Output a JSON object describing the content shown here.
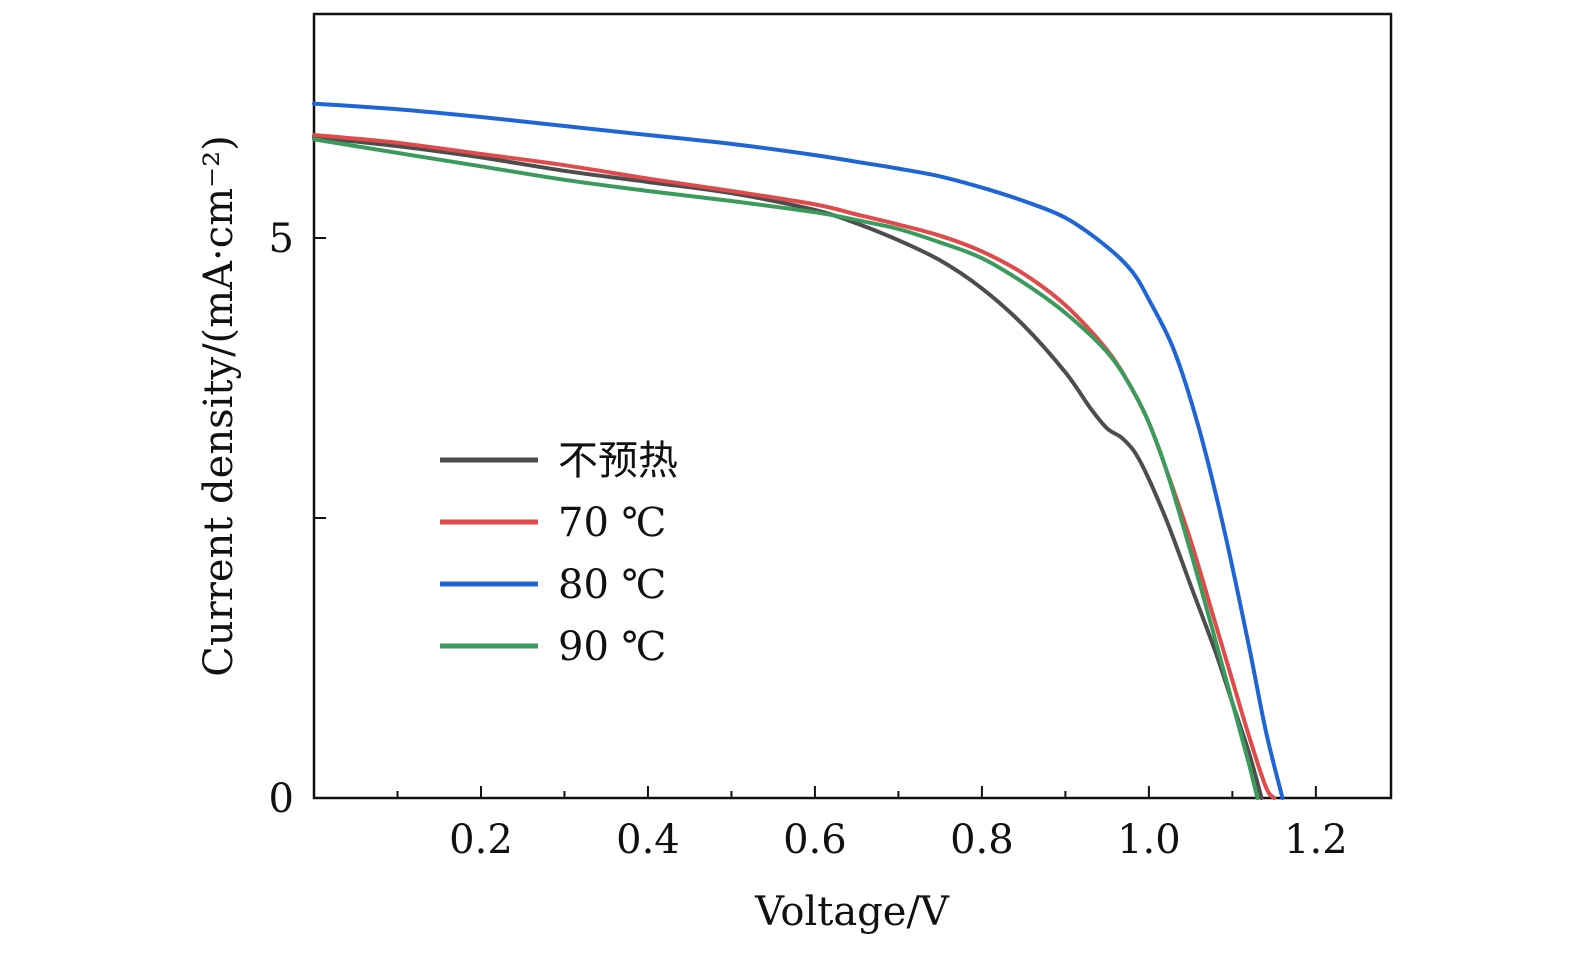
{
  "chart_data": {
    "type": "line",
    "xlabel": "Voltage/V",
    "ylabel": "Current density/(mA·cm⁻²)",
    "xlim": [
      0,
      1.29
    ],
    "ylim": [
      0,
      7.0
    ],
    "x_ticks": [
      {
        "value": 0.2,
        "label": "0.2"
      },
      {
        "value": 0.4,
        "label": "0.4"
      },
      {
        "value": 0.6,
        "label": "0.6"
      },
      {
        "value": 0.8,
        "label": "0.8"
      },
      {
        "value": 1.0,
        "label": "1.0"
      },
      {
        "value": 1.2,
        "label": "1.2"
      }
    ],
    "x_minor_ticks": [
      0.1,
      0.3,
      0.5,
      0.7,
      0.9,
      1.1
    ],
    "y_ticks": [
      {
        "value": 0,
        "label": "0"
      },
      {
        "value": 2.5,
        "label": ""
      },
      {
        "value": 5,
        "label": "5"
      }
    ],
    "grid": false,
    "legend_position": "center-left",
    "series": [
      {
        "name": "不预热",
        "color": "#4d4d4d",
        "points": [
          [
            0.0,
            5.9
          ],
          [
            0.1,
            5.82
          ],
          [
            0.2,
            5.72
          ],
          [
            0.3,
            5.6
          ],
          [
            0.4,
            5.5
          ],
          [
            0.5,
            5.4
          ],
          [
            0.6,
            5.25
          ],
          [
            0.65,
            5.13
          ],
          [
            0.7,
            4.98
          ],
          [
            0.75,
            4.8
          ],
          [
            0.8,
            4.55
          ],
          [
            0.85,
            4.22
          ],
          [
            0.9,
            3.8
          ],
          [
            0.93,
            3.48
          ],
          [
            0.95,
            3.3
          ],
          [
            0.97,
            3.2
          ],
          [
            0.99,
            3.0
          ],
          [
            1.02,
            2.5
          ],
          [
            1.05,
            1.9
          ],
          [
            1.08,
            1.3
          ],
          [
            1.1,
            0.85
          ],
          [
            1.12,
            0.4
          ],
          [
            1.135,
            0.0
          ]
        ]
      },
      {
        "name": "70 ℃",
        "color": "#e04a4a",
        "points": [
          [
            0.0,
            5.92
          ],
          [
            0.1,
            5.85
          ],
          [
            0.2,
            5.75
          ],
          [
            0.3,
            5.65
          ],
          [
            0.4,
            5.53
          ],
          [
            0.5,
            5.42
          ],
          [
            0.6,
            5.3
          ],
          [
            0.65,
            5.21
          ],
          [
            0.7,
            5.12
          ],
          [
            0.75,
            5.02
          ],
          [
            0.8,
            4.88
          ],
          [
            0.85,
            4.68
          ],
          [
            0.9,
            4.4
          ],
          [
            0.95,
            4.0
          ],
          [
            0.98,
            3.65
          ],
          [
            1.0,
            3.35
          ],
          [
            1.02,
            2.95
          ],
          [
            1.05,
            2.3
          ],
          [
            1.08,
            1.55
          ],
          [
            1.1,
            1.05
          ],
          [
            1.12,
            0.55
          ],
          [
            1.14,
            0.1
          ],
          [
            1.15,
            0.0
          ]
        ]
      },
      {
        "name": "80 ℃",
        "color": "#1f65d6",
        "points": [
          [
            0.0,
            6.2
          ],
          [
            0.1,
            6.15
          ],
          [
            0.2,
            6.08
          ],
          [
            0.3,
            6.0
          ],
          [
            0.4,
            5.92
          ],
          [
            0.5,
            5.84
          ],
          [
            0.6,
            5.74
          ],
          [
            0.65,
            5.68
          ],
          [
            0.7,
            5.62
          ],
          [
            0.75,
            5.55
          ],
          [
            0.8,
            5.45
          ],
          [
            0.85,
            5.33
          ],
          [
            0.9,
            5.18
          ],
          [
            0.95,
            4.92
          ],
          [
            0.98,
            4.7
          ],
          [
            1.0,
            4.45
          ],
          [
            1.03,
            4.0
          ],
          [
            1.06,
            3.3
          ],
          [
            1.09,
            2.4
          ],
          [
            1.12,
            1.35
          ],
          [
            1.14,
            0.6
          ],
          [
            1.16,
            0.0
          ]
        ]
      },
      {
        "name": "90 ℃",
        "color": "#3a9b5c",
        "points": [
          [
            0.0,
            5.88
          ],
          [
            0.1,
            5.76
          ],
          [
            0.2,
            5.64
          ],
          [
            0.3,
            5.52
          ],
          [
            0.4,
            5.42
          ],
          [
            0.5,
            5.33
          ],
          [
            0.6,
            5.23
          ],
          [
            0.65,
            5.16
          ],
          [
            0.7,
            5.08
          ],
          [
            0.75,
            4.96
          ],
          [
            0.8,
            4.82
          ],
          [
            0.85,
            4.6
          ],
          [
            0.9,
            4.33
          ],
          [
            0.95,
            3.98
          ],
          [
            0.98,
            3.65
          ],
          [
            1.0,
            3.35
          ],
          [
            1.02,
            2.95
          ],
          [
            1.05,
            2.2
          ],
          [
            1.08,
            1.4
          ],
          [
            1.1,
            0.85
          ],
          [
            1.12,
            0.3
          ],
          [
            1.13,
            0.0
          ]
        ]
      }
    ]
  }
}
